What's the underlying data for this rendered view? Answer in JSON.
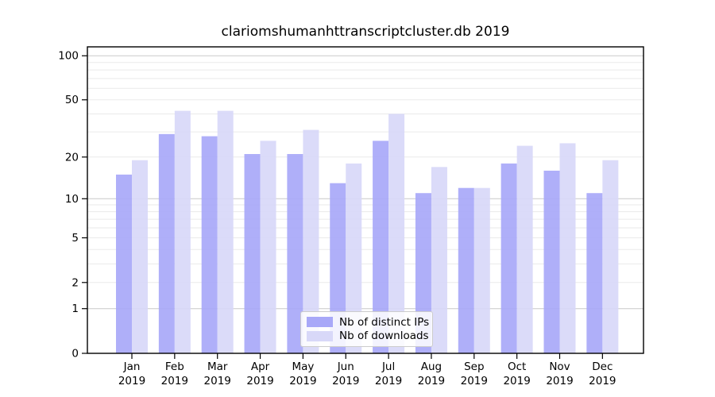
{
  "title": "clariomshumanhttranscriptcluster.db 2019",
  "chart_data": {
    "type": "bar",
    "title": "clariomshumanhttranscriptcluster.db 2019",
    "categories": [
      "Jan",
      "Feb",
      "Mar",
      "Apr",
      "May",
      "Jun",
      "Jul",
      "Aug",
      "Sep",
      "Oct",
      "Nov",
      "Dec"
    ],
    "x_tick_year": "2019",
    "series": [
      {
        "name": "Nb of distinct IPs",
        "color": "#a8a8f8",
        "values": [
          15,
          29,
          28,
          21,
          21,
          13,
          26,
          11,
          12,
          18,
          16,
          11
        ]
      },
      {
        "name": "Nb of downloads",
        "color": "#d8d8f8",
        "values": [
          19,
          42,
          42,
          26,
          31,
          18,
          40,
          17,
          12,
          24,
          25,
          19
        ]
      }
    ],
    "yscale": "log1p",
    "yticks": [
      0,
      1,
      2,
      5,
      10,
      20,
      50,
      100
    ],
    "ylim": [
      0,
      115
    ],
    "xlabel": "",
    "ylabel": "",
    "grid": true,
    "legend_position": "lower center"
  },
  "colors": {
    "grid_major": "#c9c9c9",
    "grid_minor": "#eaeaea",
    "axis": "#000000",
    "background": "#ffffff"
  }
}
